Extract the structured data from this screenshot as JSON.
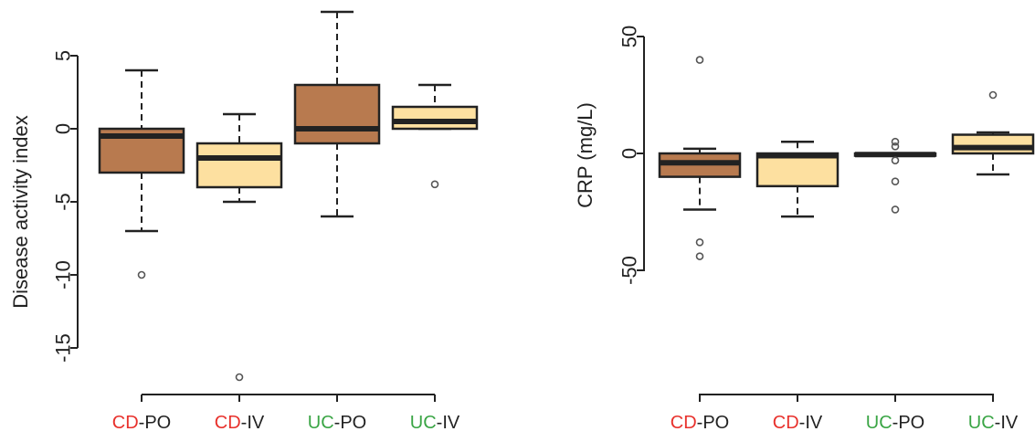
{
  "colors": {
    "cd_text": "#e8312c",
    "uc_text": "#3aa545",
    "suffix_text": "#222222",
    "box_po": "#b87a4f",
    "box_iv": "#fde0a0",
    "outline": "#222222",
    "median": "#222222"
  },
  "chart_data": [
    {
      "type": "boxplot",
      "ylabel": "Disease activity index",
      "ylim": [
        -17.5,
        8.2
      ],
      "yticks": [
        5,
        0,
        -5,
        -10,
        -15
      ],
      "ytick_labels": [
        "5",
        "0",
        "-5",
        "-10",
        "-15"
      ],
      "categories": [
        {
          "prefix": "CD",
          "suffix": "-PO"
        },
        {
          "prefix": "CD",
          "suffix": "-IV"
        },
        {
          "prefix": "UC",
          "suffix": "-PO"
        },
        {
          "prefix": "UC",
          "suffix": "-IV"
        }
      ],
      "boxes": [
        {
          "fill": "po",
          "whisker_low": -7,
          "q1": -3,
          "median": -0.5,
          "q3": 0,
          "whisker_high": 4,
          "outliers": [
            -10
          ]
        },
        {
          "fill": "iv",
          "whisker_low": -5,
          "q1": -4,
          "median": -2,
          "q3": -1,
          "whisker_high": 1,
          "outliers": [
            -17
          ]
        },
        {
          "fill": "po",
          "whisker_low": -6,
          "q1": -1,
          "median": 0,
          "q3": 3,
          "whisker_high": 8,
          "outliers": []
        },
        {
          "fill": "iv",
          "whisker_low": 0,
          "q1": 0,
          "median": 0.5,
          "q3": 1.5,
          "whisker_high": 3,
          "outliers": [
            -3.8
          ]
        }
      ]
    },
    {
      "type": "boxplot",
      "ylabel": "CRP (mg/L)",
      "ylim": [
        -50,
        50
      ],
      "yticks": [
        50,
        0,
        -50
      ],
      "ytick_labels": [
        "50",
        "0",
        "-50"
      ],
      "categories": [
        {
          "prefix": "CD",
          "suffix": "-PO"
        },
        {
          "prefix": "CD",
          "suffix": "-IV"
        },
        {
          "prefix": "UC",
          "suffix": "-PO"
        },
        {
          "prefix": "UC",
          "suffix": "-IV"
        }
      ],
      "boxes": [
        {
          "fill": "po",
          "whisker_low": -24,
          "q1": -10,
          "median": -4,
          "q3": 0,
          "whisker_high": 2,
          "outliers": [
            40,
            -38,
            -44
          ]
        },
        {
          "fill": "iv",
          "whisker_low": -27,
          "q1": -14,
          "median": -1,
          "q3": 0,
          "whisker_high": 5,
          "outliers": []
        },
        {
          "fill": "po",
          "whisker_low": -1,
          "q1": -1,
          "median": -0.5,
          "q3": 0,
          "whisker_high": 0,
          "outliers": [
            5,
            3,
            -3,
            -12,
            -24
          ]
        },
        {
          "fill": "iv",
          "whisker_low": -9,
          "q1": 0,
          "median": 2.5,
          "q3": 8,
          "whisker_high": 9,
          "outliers": [
            25
          ]
        }
      ]
    }
  ]
}
